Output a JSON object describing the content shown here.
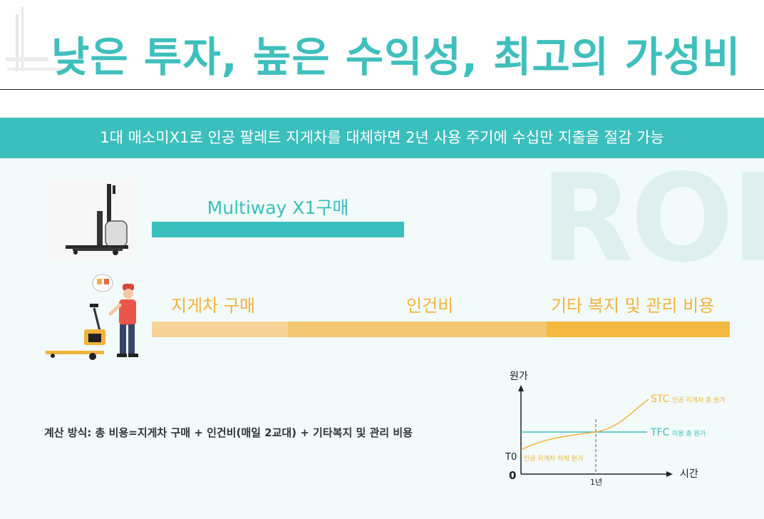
{
  "title": "낮은 투자, 높은 수익성, 최고의 가성비",
  "banner": "1대 매소미X1로 인공 팔레트 지게차를 대체하면 2년 사용 주기에 수십만 지출을 절감 가능",
  "watermark": "ROI",
  "purchase": {
    "label": "Multiway X1구매"
  },
  "costs": {
    "purchase_label": "지게차 구매",
    "labor_label": "인건비",
    "other_label": "기타 복지 및 관리 비용"
  },
  "formula": "계산 방식: 총 비용=지게차 구매 + 인건비(매일 2교대) + 기타복지 및 관리 비용",
  "graph": {
    "y_label": "원가",
    "x_label": "시간",
    "origin": "0",
    "t0": "T0",
    "t0_note": "인공 지게차 차체 원가",
    "year_tick": "1년",
    "stc": "STC",
    "stc_note": "인공 지게차 총 원가",
    "tfc": "TFC",
    "tfc_note": "미봉 총 원가",
    "colors": {
      "stc": "#f2b33d",
      "tfc": "#3bbfbd"
    }
  }
}
